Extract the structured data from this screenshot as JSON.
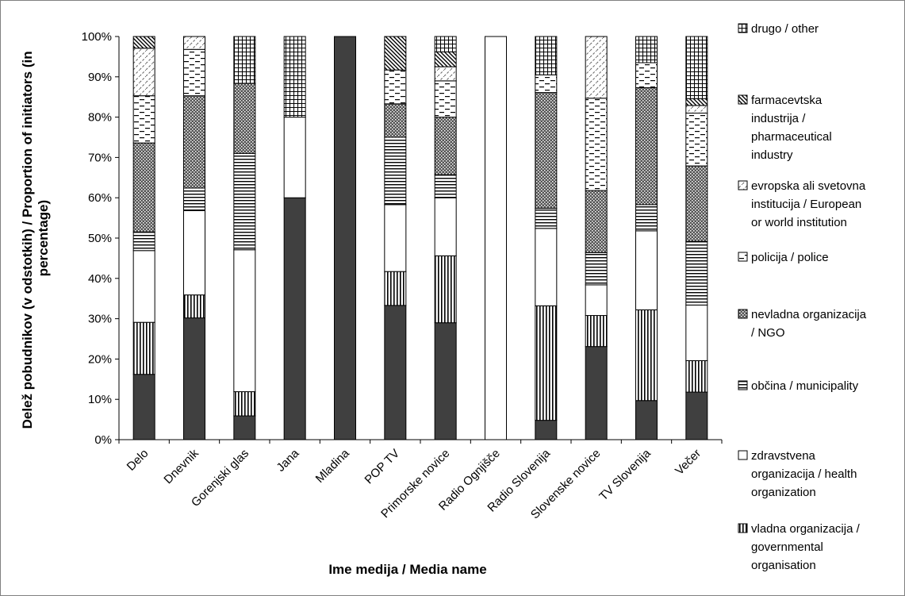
{
  "chart_data": {
    "type": "bar",
    "stacked": true,
    "percent_stacked": true,
    "title": "",
    "xlabel": "Ime medija / Media name",
    "ylabel": [
      "Delež pobudnikov (v odstotkih) / Proportion of initiators (in",
      "percentage)"
    ],
    "ylim": [
      0,
      100
    ],
    "yticks": [
      "0%",
      "10%",
      "20%",
      "30%",
      "40%",
      "50%",
      "60%",
      "70%",
      "80%",
      "90%",
      "100%"
    ],
    "legend_position": "right",
    "categories": [
      "Delo",
      "Dnevnik",
      "Gorenjski glas",
      "Jana",
      "Mladina",
      "POP TV",
      "Primorske novice",
      "Radio Ognjišče",
      "Radio Slovenija",
      "Slovenske novice",
      "TV Slovenija",
      "Večer"
    ],
    "series": [
      {
        "key": "s0",
        "pattern": "solid-dark",
        "values": [
          16.2,
          30.2,
          5.9,
          60.0,
          100.0,
          33.3,
          29.0,
          0.0,
          4.8,
          23.1,
          9.7,
          11.8
        ]
      },
      {
        "key": "s1",
        "pattern": "vertical-lines",
        "values": [
          12.9,
          5.7,
          6.0,
          0.0,
          0.0,
          8.4,
          16.6,
          0.0,
          28.4,
          7.7,
          22.5,
          7.8
        ]
      },
      {
        "key": "s2",
        "pattern": "white",
        "values": [
          17.8,
          20.9,
          35.2,
          20.0,
          0.0,
          16.6,
          14.4,
          100.0,
          19.2,
          7.6,
          19.6,
          13.8
        ]
      },
      {
        "key": "s3",
        "pattern": "horizontal-lines",
        "values": [
          4.6,
          5.6,
          23.9,
          0.0,
          0.0,
          16.7,
          5.7,
          0.0,
          5.0,
          8.0,
          6.5,
          15.8
        ]
      },
      {
        "key": "s4",
        "pattern": "dots-dark",
        "values": [
          22.1,
          22.9,
          17.4,
          0.0,
          0.0,
          8.3,
          14.3,
          0.0,
          28.7,
          15.4,
          29.0,
          18.7
        ]
      },
      {
        "key": "s5",
        "pattern": "dashes",
        "values": [
          11.7,
          11.5,
          0.0,
          0.0,
          0.0,
          8.4,
          9.0,
          0.0,
          4.4,
          22.9,
          6.2,
          13.1
        ]
      },
      {
        "key": "s6",
        "pattern": "diagonal-light",
        "values": [
          11.8,
          3.2,
          0.0,
          0.0,
          0.0,
          0.0,
          3.5,
          0.0,
          0.0,
          15.3,
          0.0,
          1.9
        ]
      },
      {
        "key": "s7",
        "pattern": "diagonal-dense",
        "values": [
          2.9,
          0.0,
          0.0,
          0.0,
          0.0,
          8.3,
          3.7,
          0.0,
          0.0,
          0.0,
          0.0,
          1.7
        ]
      },
      {
        "key": "s8",
        "pattern": "grid",
        "values": [
          0.0,
          0.0,
          11.6,
          20.0,
          0.0,
          0.0,
          3.8,
          0.0,
          9.5,
          0.0,
          6.5,
          15.4
        ]
      }
    ],
    "legend": [
      {
        "pattern": "grid",
        "lines": [
          "drugo / other"
        ]
      },
      {
        "pattern": "diagonal-dense",
        "lines": [
          "farmacevtska",
          "industrija /",
          "pharmaceutical",
          "industry"
        ]
      },
      {
        "pattern": "diagonal-light",
        "lines": [
          "evropska ali svetovna",
          "institucija / European",
          "or world institution"
        ]
      },
      {
        "pattern": "dashes",
        "lines": [
          "policija / police"
        ]
      },
      {
        "pattern": "dots-dark",
        "lines": [
          "nevladna organizacija",
          "/ NGO"
        ]
      },
      {
        "pattern": "horizontal-lines",
        "lines": [
          "občina / municipality"
        ]
      },
      {
        "pattern": "white",
        "lines": [
          "zdravstvena",
          "organizacija / health",
          "organization"
        ]
      },
      {
        "pattern": "vertical-lines",
        "lines": [
          "vladna organizacija /",
          "governmental",
          "organisation"
        ]
      }
    ]
  }
}
